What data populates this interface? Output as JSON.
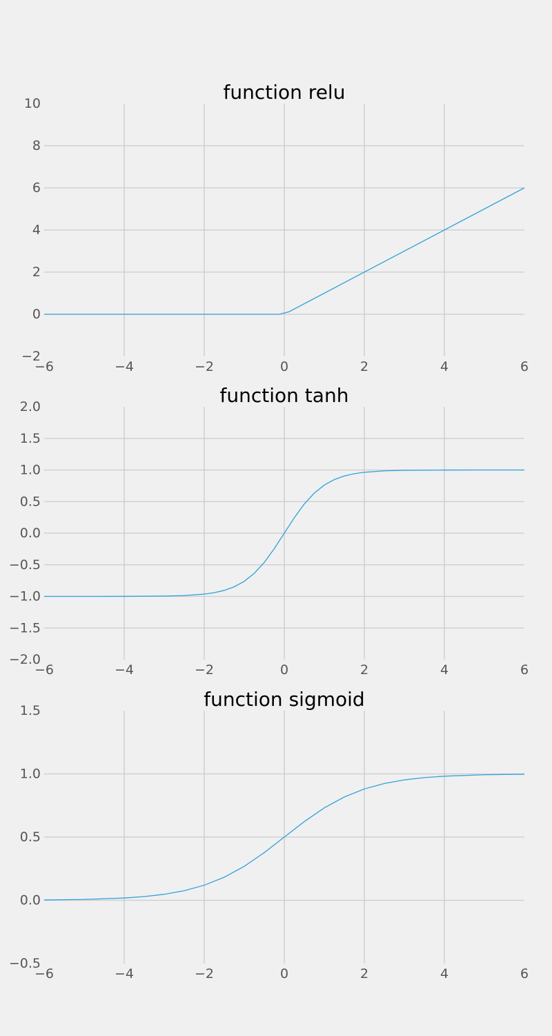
{
  "figure": {
    "background": "#f0f0f0",
    "grid_color": "#cbcbcb",
    "line_color": "#30a2da"
  },
  "chart_data": [
    {
      "type": "line",
      "title": "function relu",
      "xlabel": "",
      "ylabel": "",
      "xlim": [
        -6,
        6
      ],
      "ylim": [
        -2,
        10
      ],
      "grid": true,
      "xticks": [
        -6,
        -4,
        -2,
        0,
        2,
        4,
        6
      ],
      "xtick_labels": [
        "−6",
        "−4",
        "−2",
        "0",
        "2",
        "4",
        "6"
      ],
      "yticks": [
        -2,
        0,
        2,
        4,
        6,
        8,
        10
      ],
      "ytick_labels": [
        "−2",
        "0",
        "2",
        "4",
        "6",
        "8",
        "10"
      ],
      "series": [
        {
          "function": "relu",
          "color": "#30a2da",
          "x": [
            -6,
            -0.12,
            0.12,
            6
          ],
          "y": [
            0,
            0,
            0.12,
            6
          ]
        }
      ]
    },
    {
      "type": "line",
      "title": "function tanh",
      "xlabel": "",
      "ylabel": "",
      "xlim": [
        -6,
        6
      ],
      "ylim": [
        -2,
        2
      ],
      "grid": true,
      "xticks": [
        -6,
        -4,
        -2,
        0,
        2,
        4,
        6
      ],
      "xtick_labels": [
        "−6",
        "−4",
        "−2",
        "0",
        "2",
        "4",
        "6"
      ],
      "yticks": [
        -2,
        -1.5,
        -1,
        -0.5,
        0,
        0.5,
        1,
        1.5,
        2
      ],
      "ytick_labels": [
        "−2.0",
        "−1.5",
        "−1.0",
        "−0.5",
        "0.0",
        "0.5",
        "1.0",
        "1.5",
        "2.0"
      ],
      "series": [
        {
          "function": "tanh",
          "color": "#30a2da",
          "x": [
            -6,
            -5,
            -4,
            -3,
            -2.5,
            -2,
            -1.75,
            -1.5,
            -1.25,
            -1,
            -0.75,
            -0.5,
            -0.25,
            0,
            0.25,
            0.5,
            0.75,
            1,
            1.25,
            1.5,
            1.75,
            2,
            2.5,
            3,
            4,
            5,
            6
          ],
          "y": [
            -1,
            -0.9999,
            -0.9993,
            -0.9951,
            -0.9866,
            -0.964,
            -0.9414,
            -0.9051,
            -0.8483,
            -0.7616,
            -0.6351,
            -0.4621,
            -0.2449,
            0,
            0.2449,
            0.4621,
            0.6351,
            0.7616,
            0.8483,
            0.9051,
            0.9414,
            0.964,
            0.9866,
            0.9951,
            0.9993,
            0.9999,
            1
          ]
        }
      ]
    },
    {
      "type": "line",
      "title": "function sigmoid",
      "xlabel": "",
      "ylabel": "",
      "xlim": [
        -6,
        6
      ],
      "ylim": [
        -0.5,
        1.5
      ],
      "grid": true,
      "xticks": [
        -6,
        -4,
        -2,
        0,
        2,
        4,
        6
      ],
      "xtick_labels": [
        "−6",
        "−4",
        "−2",
        "0",
        "2",
        "4",
        "6"
      ],
      "yticks": [
        -0.5,
        0,
        0.5,
        1,
        1.5
      ],
      "ytick_labels": [
        "−0.5",
        "0.0",
        "0.5",
        "1.0",
        "1.5"
      ],
      "series": [
        {
          "function": "sigmoid",
          "color": "#30a2da",
          "x": [
            -6,
            -5,
            -4,
            -3.5,
            -3,
            -2.5,
            -2,
            -1.5,
            -1,
            -0.5,
            0,
            0.5,
            1,
            1.5,
            2,
            2.5,
            3,
            3.5,
            4,
            5,
            6
          ],
          "y": [
            0.0025,
            0.0067,
            0.018,
            0.0293,
            0.0474,
            0.0759,
            0.1192,
            0.1824,
            0.2689,
            0.3775,
            0.5,
            0.6225,
            0.7311,
            0.8176,
            0.8808,
            0.9241,
            0.9526,
            0.9707,
            0.982,
            0.9933,
            0.9975
          ]
        }
      ]
    }
  ]
}
